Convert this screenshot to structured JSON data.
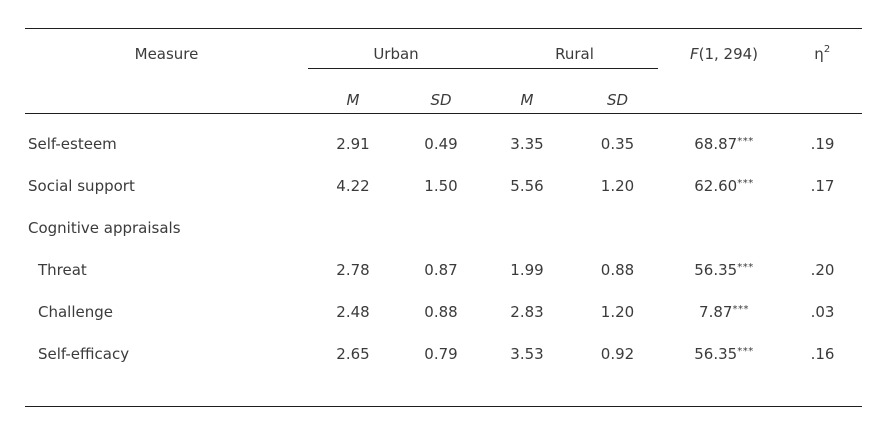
{
  "table": {
    "col_headers": {
      "measure": "Measure",
      "urban": "Urban",
      "rural": "Rural",
      "f_stat_prefix": "F",
      "f_stat_args": "(1, 294)",
      "eta_symbol": "η",
      "eta_exponent": "2",
      "mean_label": "M",
      "sd_label": "SD"
    },
    "rows": [
      {
        "label": "Self-esteem",
        "urban_m": "2.91",
        "urban_sd": "0.49",
        "rural_m": "3.35",
        "rural_sd": "0.35",
        "f_value": "68.87",
        "f_sig": "***",
        "eta_sq": ".19"
      },
      {
        "label": "Social support",
        "urban_m": "4.22",
        "urban_sd": "1.50",
        "rural_m": "5.56",
        "rural_sd": "1.20",
        "f_value": "62.60",
        "f_sig": "***",
        "eta_sq": ".17"
      },
      {
        "label": "Cognitive appraisals",
        "urban_m": "",
        "urban_sd": "",
        "rural_m": "",
        "rural_sd": "",
        "f_value": "",
        "f_sig": "",
        "eta_sq": ""
      },
      {
        "label": "Threat",
        "urban_m": "2.78",
        "urban_sd": "0.87",
        "rural_m": "1.99",
        "rural_sd": "0.88",
        "f_value": "56.35",
        "f_sig": "***",
        "eta_sq": ".20"
      },
      {
        "label": "Challenge",
        "urban_m": "2.48",
        "urban_sd": "0.88",
        "rural_m": "2.83",
        "rural_sd": "1.20",
        "f_value": "7.87",
        "f_sig": "***",
        "eta_sq": ".03"
      },
      {
        "label": "Self-efficacy",
        "urban_m": "2.65",
        "urban_sd": "0.79",
        "rural_m": "3.53",
        "rural_sd": "0.92",
        "f_value": "56.35",
        "f_sig": "***",
        "eta_sq": ".16"
      }
    ],
    "colors": {
      "text": "#3b3b3b",
      "rule": "#1f1f1f",
      "background": "#ffffff"
    }
  }
}
